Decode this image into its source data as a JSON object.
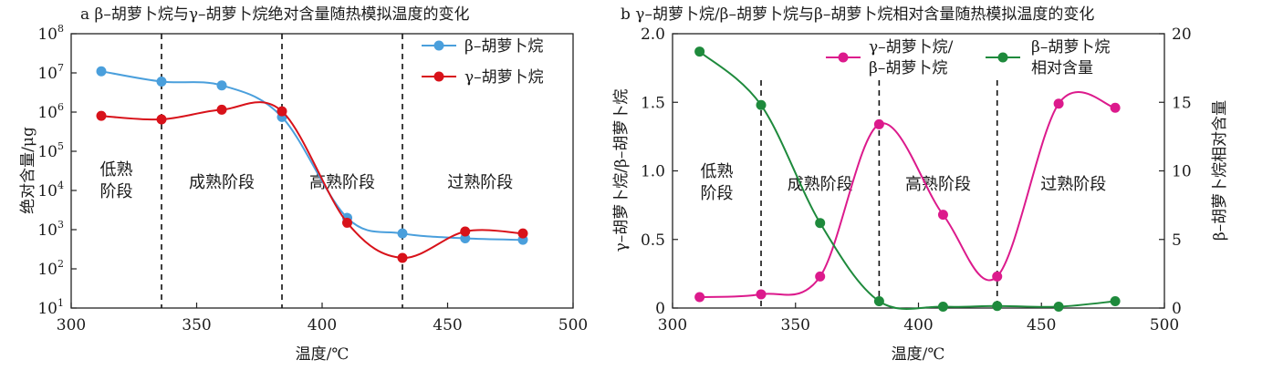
{
  "chart_data": [
    {
      "type": "line",
      "title": "a β–胡萝卜烷与γ–胡萝卜烷绝对含量随热模拟温度的变化",
      "xlabel": "温度/℃",
      "ylabel": "绝对含量/μg",
      "yscale": "log",
      "xlim": [
        300,
        500
      ],
      "ylim": [
        10,
        100000000
      ],
      "x_ticks": [
        300,
        350,
        400,
        450,
        500
      ],
      "y_tick_exponents": [
        1,
        2,
        3,
        4,
        5,
        6,
        7,
        8
      ],
      "legend_position": "top-right",
      "series": [
        {
          "name": "β–胡萝卜烷",
          "color": "#4a9fdc",
          "x": [
            312,
            336,
            360,
            384,
            410,
            432,
            457,
            480
          ],
          "y": [
            11000000,
            6000000,
            4800000,
            750000,
            2000,
            800,
            600,
            550
          ]
        },
        {
          "name": "γ–胡萝卜烷",
          "color": "#d8121a",
          "x": [
            312,
            336,
            360,
            384,
            410,
            432,
            457,
            480
          ],
          "y": [
            800000,
            650000,
            1150000,
            1050000,
            1500,
            190,
            900,
            800
          ]
        }
      ],
      "stage_boundaries": [
        336,
        384,
        432
      ],
      "stages": [
        {
          "lines": [
            "低熟",
            "阶段"
          ],
          "x": 318
        },
        {
          "lines": [
            "成熟阶段"
          ],
          "x": 360
        },
        {
          "lines": [
            "高熟阶段"
          ],
          "x": 408
        },
        {
          "lines": [
            "过熟阶段"
          ],
          "x": 463
        }
      ]
    },
    {
      "type": "line",
      "title": "b γ–胡萝卜烷/β–胡萝卜烷与β–胡萝卜烷相对含量随热模拟温度的变化",
      "xlabel": "温度/℃",
      "ylabel": "γ–胡萝卜烷/β–胡萝卜烷",
      "ylabel_right": "β–胡萝卜烷相对含量",
      "xlim": [
        300,
        500
      ],
      "ylim": [
        0,
        2.0
      ],
      "ylim_right": [
        0,
        20
      ],
      "x_ticks": [
        300,
        350,
        400,
        450,
        500
      ],
      "y_ticks": [
        "0",
        "0.5",
        "1.0",
        "1.5",
        "2.0"
      ],
      "y_ticks_right": [
        "0",
        "5",
        "10",
        "15",
        "20"
      ],
      "legend_position": "top",
      "series": [
        {
          "name": "γ–胡萝卜烷/ β–胡萝卜烷",
          "name_lines": [
            "γ–胡萝卜烷/",
            "β–胡萝卜烷"
          ],
          "axis": "left",
          "color": "#dc1a8c",
          "x": [
            311,
            336,
            360,
            384,
            410,
            432,
            457,
            480
          ],
          "y": [
            0.08,
            0.1,
            0.23,
            1.34,
            0.68,
            0.23,
            1.49,
            1.46
          ]
        },
        {
          "name": "β–胡萝卜烷 相对含量",
          "name_lines": [
            "β–胡萝卜烷",
            "相对含量"
          ],
          "axis": "right",
          "color": "#1e8a3c",
          "x": [
            311,
            336,
            360,
            384,
            410,
            432,
            457,
            480
          ],
          "y": [
            18.7,
            14.8,
            6.2,
            0.5,
            0.1,
            0.15,
            0.1,
            0.5
          ]
        }
      ],
      "stage_boundaries": [
        336,
        384,
        432
      ],
      "stages": [
        {
          "lines": [
            "低熟",
            "阶段"
          ],
          "x": 318
        },
        {
          "lines": [
            "成熟阶段"
          ],
          "x": 360
        },
        {
          "lines": [
            "高熟阶段"
          ],
          "x": 408
        },
        {
          "lines": [
            "过熟阶段"
          ],
          "x": 463
        }
      ]
    }
  ]
}
